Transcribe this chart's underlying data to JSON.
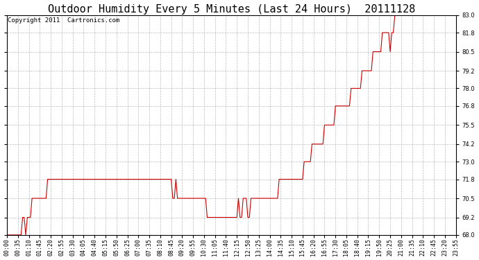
{
  "title": "Outdoor Humidity Every 5 Minutes (Last 24 Hours)  20111128",
  "copyright": "Copyright 2011  Cartronics.com",
  "line_color": "#cc0000",
  "bg_color": "#ffffff",
  "plot_bg_color": "#ffffff",
  "grid_color": "#aaaaaa",
  "ylim": [
    68.0,
    83.0
  ],
  "yticks": [
    68.0,
    69.2,
    70.5,
    71.8,
    73.0,
    74.2,
    75.5,
    76.8,
    78.0,
    79.2,
    80.5,
    81.8,
    83.0
  ],
  "humidity_data": [
    68.0,
    68.0,
    68.0,
    68.0,
    68.0,
    68.0,
    68.0,
    68.0,
    68.0,
    68.0,
    69.2,
    69.2,
    68.0,
    69.2,
    69.2,
    69.2,
    70.5,
    70.5,
    70.5,
    70.5,
    70.5,
    70.5,
    70.5,
    70.5,
    70.5,
    70.5,
    71.8,
    71.8,
    71.8,
    71.8,
    71.8,
    71.8,
    71.8,
    71.8,
    71.8,
    71.8,
    71.8,
    71.8,
    71.8,
    71.8,
    71.8,
    71.8,
    71.8,
    71.8,
    71.8,
    71.8,
    71.8,
    71.8,
    71.8,
    71.8,
    71.8,
    71.8,
    71.8,
    71.8,
    71.8,
    71.8,
    71.8,
    71.8,
    71.8,
    71.8,
    71.8,
    71.8,
    71.8,
    71.8,
    71.8,
    71.8,
    71.8,
    71.8,
    71.8,
    71.8,
    71.8,
    71.8,
    71.8,
    71.8,
    71.8,
    71.8,
    71.8,
    71.8,
    71.8,
    71.8,
    71.8,
    71.8,
    71.8,
    71.8,
    71.8,
    71.8,
    71.8,
    71.8,
    71.8,
    71.8,
    71.8,
    71.8,
    71.8,
    71.8,
    71.8,
    71.8,
    71.8,
    71.8,
    71.8,
    71.8,
    71.8,
    71.8,
    71.8,
    71.8,
    71.8,
    71.8,
    70.5,
    70.5,
    71.8,
    70.5,
    70.5,
    70.5,
    70.5,
    70.5,
    70.5,
    70.5,
    70.5,
    70.5,
    70.5,
    70.5,
    70.5,
    70.5,
    70.5,
    70.5,
    70.5,
    70.5,
    70.5,
    70.5,
    69.2,
    69.2,
    69.2,
    69.2,
    69.2,
    69.2,
    69.2,
    69.2,
    69.2,
    69.2,
    69.2,
    69.2,
    69.2,
    69.2,
    69.2,
    69.2,
    69.2,
    69.2,
    69.2,
    69.2,
    70.5,
    69.2,
    69.2,
    70.5,
    70.5,
    70.5,
    69.2,
    69.2,
    70.5,
    70.5,
    70.5,
    70.5,
    70.5,
    70.5,
    70.5,
    70.5,
    70.5,
    70.5,
    70.5,
    70.5,
    70.5,
    70.5,
    70.5,
    70.5,
    70.5,
    70.5,
    71.8,
    71.8,
    71.8,
    71.8,
    71.8,
    71.8,
    71.8,
    71.8,
    71.8,
    71.8,
    71.8,
    71.8,
    71.8,
    71.8,
    71.8,
    71.8,
    73.0,
    73.0,
    73.0,
    73.0,
    73.0,
    74.2,
    74.2,
    74.2,
    74.2,
    74.2,
    74.2,
    74.2,
    74.2,
    75.5,
    75.5,
    75.5,
    75.5,
    75.5,
    75.5,
    75.5,
    76.8,
    76.8,
    76.8,
    76.8,
    76.8,
    76.8,
    76.8,
    76.8,
    76.8,
    76.8,
    78.0,
    78.0,
    78.0,
    78.0,
    78.0,
    78.0,
    78.0,
    79.2,
    79.2,
    79.2,
    79.2,
    79.2,
    79.2,
    79.2,
    80.5,
    80.5,
    80.5,
    80.5,
    80.5,
    80.5,
    81.8,
    81.8,
    81.8,
    81.8,
    81.8,
    80.5,
    81.8,
    81.8,
    83.0,
    83.0,
    83.0,
    83.0,
    83.0,
    83.0,
    83.0,
    83.0,
    83.0,
    83.0,
    83.0,
    83.0,
    83.0,
    83.0,
    83.0,
    83.0,
    83.0,
    83.0,
    83.0,
    83.0,
    83.0,
    83.0,
    83.0,
    83.0,
    83.0,
    83.0,
    83.0,
    83.0,
    83.0,
    83.0,
    83.0,
    83.0,
    83.0,
    83.0,
    83.0,
    83.0,
    83.0,
    83.0,
    83.0,
    83.0
  ],
  "xtick_interval": 7,
  "title_fontsize": 11,
  "tick_fontsize": 6.0,
  "copyright_fontsize": 6.5
}
